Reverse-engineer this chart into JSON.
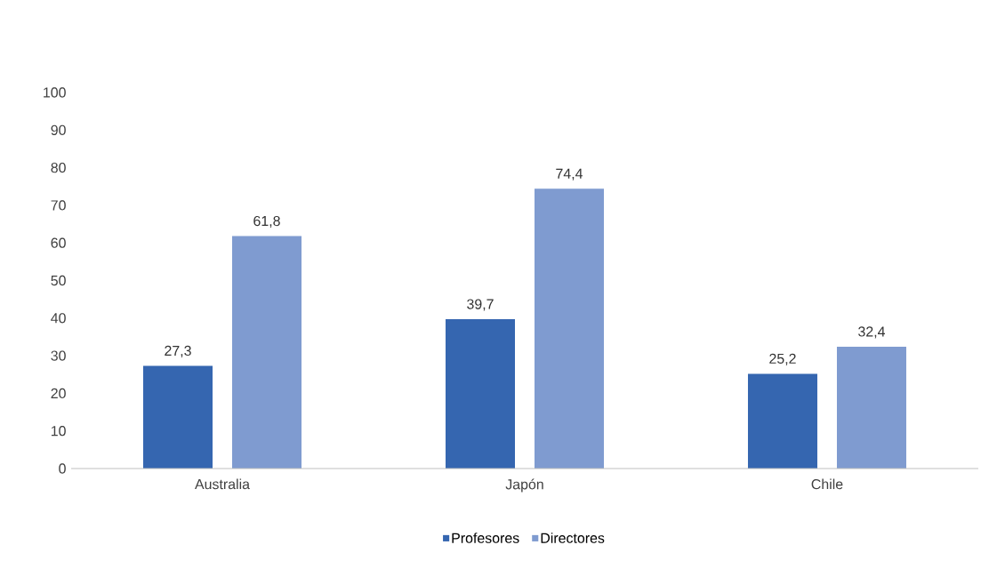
{
  "chart_data": {
    "type": "bar",
    "categories": [
      "Australia",
      "Japón",
      "Chile"
    ],
    "series": [
      {
        "name": "Profesores",
        "color": "#3566b0",
        "values": [
          27.3,
          39.7,
          25.2
        ],
        "value_labels": [
          "27,3",
          "39,7",
          "25,2"
        ]
      },
      {
        "name": "Directores",
        "color": "#7f9bd0",
        "values": [
          61.8,
          74.4,
          32.4
        ],
        "value_labels": [
          "61,8",
          "74,4",
          "32,4"
        ]
      }
    ],
    "ylim": [
      0,
      100
    ],
    "yticks": [
      0,
      10,
      20,
      30,
      40,
      50,
      60,
      70,
      80,
      90,
      100
    ],
    "grid": false,
    "legend": "bottom"
  }
}
